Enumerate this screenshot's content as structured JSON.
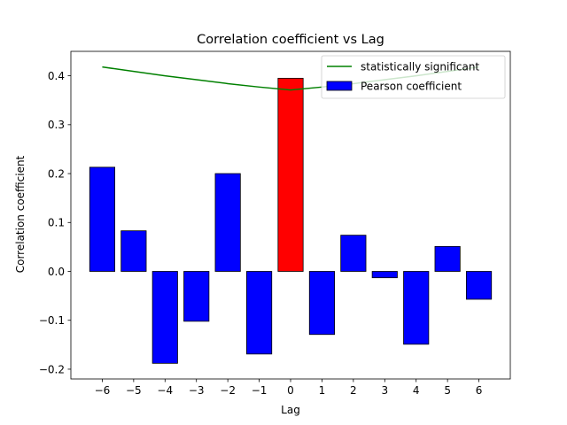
{
  "chart_data": {
    "type": "bar",
    "title": "Correlation coefficient vs Lag",
    "xlabel": "Lag",
    "ylabel": "Correlation coefficient",
    "x": [
      -6,
      -5,
      -4,
      -3,
      -2,
      -1,
      0,
      1,
      2,
      3,
      4,
      5,
      6
    ],
    "x_tick_labels": [
      "−6",
      "−5",
      "−4",
      "−3",
      "−2",
      "−1",
      "0",
      "1",
      "2",
      "3",
      "4",
      "5",
      "6"
    ],
    "y_ticks": [
      -0.2,
      -0.1,
      0.0,
      0.1,
      0.2,
      0.3,
      0.4
    ],
    "y_tick_labels": [
      "−0.2",
      "−0.1",
      "0.0",
      "0.1",
      "0.2",
      "0.3",
      "0.4"
    ],
    "xlim": [
      -7,
      7
    ],
    "ylim": [
      -0.22,
      0.45
    ],
    "grid": false,
    "legend_position": "top-right",
    "series": [
      {
        "name": "Pearson coefficient",
        "kind": "bar",
        "color": "#0000ff",
        "highlight_color": "#ff0000",
        "highlight_index": 6,
        "values": [
          0.213,
          0.083,
          -0.188,
          -0.102,
          0.2,
          -0.169,
          0.395,
          -0.129,
          0.074,
          -0.013,
          -0.149,
          0.051,
          -0.057
        ]
      },
      {
        "name": "statistically significant",
        "kind": "line",
        "color": "#008000",
        "values": [
          0.418,
          0.409,
          0.4,
          0.392,
          0.384,
          0.377,
          0.371,
          0.377,
          0.384,
          0.392,
          0.4,
          0.409,
          0.418
        ]
      }
    ]
  }
}
